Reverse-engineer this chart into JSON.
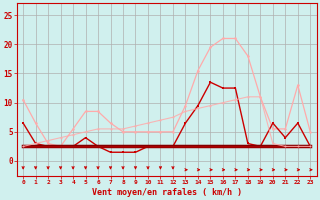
{
  "x": [
    0,
    1,
    2,
    3,
    4,
    5,
    6,
    7,
    8,
    9,
    10,
    11,
    12,
    13,
    14,
    15,
    16,
    17,
    18,
    19,
    20,
    21,
    22,
    23
  ],
  "line_rafales": [
    10.5,
    6.5,
    3.0,
    2.5,
    5.5,
    8.5,
    8.5,
    6.5,
    5.0,
    5.0,
    5.0,
    5.0,
    5.0,
    9.5,
    15.5,
    19.5,
    21.0,
    21.0,
    18.0,
    11.0,
    5.5,
    5.5,
    13.0,
    5.0
  ],
  "line_moyen": [
    6.5,
    3.0,
    2.5,
    2.5,
    2.5,
    4.0,
    2.5,
    1.5,
    1.5,
    1.5,
    2.5,
    2.5,
    2.5,
    6.5,
    9.5,
    13.5,
    12.5,
    12.5,
    3.0,
    2.5,
    6.5,
    4.0,
    6.5,
    2.5
  ],
  "line_flat_dark": [
    2.5,
    2.5,
    2.5,
    2.5,
    2.5,
    2.5,
    2.5,
    2.5,
    2.5,
    2.5,
    2.5,
    2.5,
    2.5,
    2.5,
    2.5,
    2.5,
    2.5,
    2.5,
    2.5,
    2.5,
    2.5,
    2.5,
    2.5,
    2.5
  ],
  "line_trend": [
    2.5,
    3.0,
    3.5,
    4.0,
    4.5,
    5.0,
    5.5,
    5.5,
    5.5,
    6.0,
    6.5,
    7.0,
    7.5,
    8.5,
    9.0,
    9.5,
    10.0,
    10.5,
    11.0,
    11.0,
    3.0,
    2.5,
    2.5,
    2.5
  ],
  "color_rafales": "#ffaaaa",
  "color_moyen": "#cc0000",
  "color_dark": "#880000",
  "color_trend_line": "#ffaaaa",
  "bg_color": "#d0f0ee",
  "grid_color": "#b0b0b0",
  "xlabel": "Vent moyen/en rafales ( km/h )",
  "yticks": [
    0,
    5,
    10,
    15,
    20,
    25
  ],
  "xticks": [
    0,
    1,
    2,
    3,
    4,
    5,
    6,
    7,
    8,
    9,
    10,
    11,
    12,
    13,
    14,
    15,
    16,
    17,
    18,
    19,
    20,
    21,
    22,
    23
  ],
  "ylim": [
    -2.5,
    27
  ],
  "xlim": [
    -0.5,
    23.5
  ]
}
